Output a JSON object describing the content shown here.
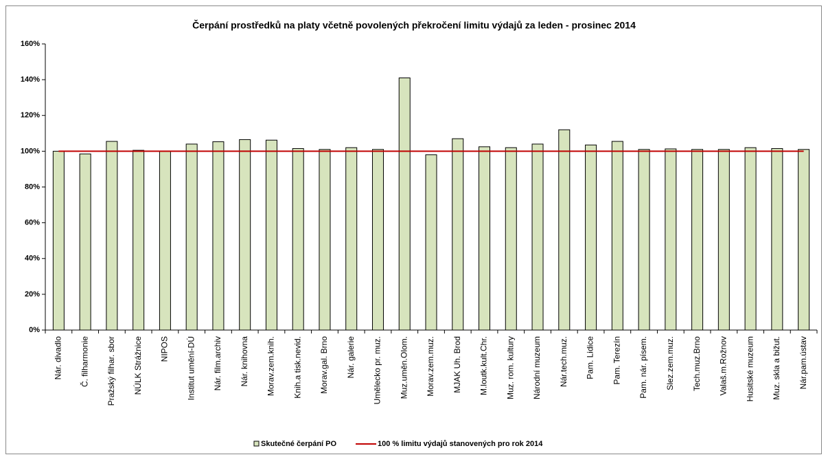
{
  "chart_data": {
    "type": "bar",
    "title": "Čerpání prostředků na platy včetně povolených překročení limitu výdajů za leden - prosinec 2014",
    "categories": [
      "Nár. divadlo",
      "Č. filharmonie",
      "Pražský filhar. sbor",
      "NÚLK Strážnice",
      "NIPOS",
      "Institut umění-DÚ",
      "Nár. film.archiv",
      "Nár. knihovna",
      "Morav.zem.knih.",
      "Knih.a tisk.nevid.",
      "Morav.gal. Brno",
      "Nár. galerie",
      "Umělecko pr. muz.",
      "Muz.uměn.Olom.",
      "Morav.zem.muz.",
      "MJAK Uh. Brod",
      "M.loutk.kult.Chr.",
      "Muz. rom. kultury",
      "Národní muzeum",
      "Nár.tech.muz.",
      "Pam. Lidice",
      "Pam. Terezín",
      "Pam. nár. písem.",
      "Slez.zem.muz.",
      "Tech.muz.Brno",
      "Valaš.m.Rožnov",
      "Husitské muzeum",
      "Muz. skla a bižut.",
      "Nár.pam.ústav"
    ],
    "series": [
      {
        "name": "Skutečné čerpání PO",
        "type": "bar",
        "color": "#d7e4bd",
        "values": [
          100,
          98.5,
          105.5,
          100.5,
          100,
          104,
          105.3,
          106.5,
          106.2,
          101.5,
          101,
          102,
          101,
          141,
          98,
          107,
          102.5,
          102,
          104,
          112,
          103.5,
          105.5,
          101,
          101.3,
          101,
          101,
          102,
          101.5,
          101
        ]
      },
      {
        "name": "100 % limitu výdajů stanovených pro rok 2014",
        "type": "line",
        "color": "#c00000",
        "values": [
          100,
          100,
          100,
          100,
          100,
          100,
          100,
          100,
          100,
          100,
          100,
          100,
          100,
          100,
          100,
          100,
          100,
          100,
          100,
          100,
          100,
          100,
          100,
          100,
          100,
          100,
          100,
          100,
          100
        ]
      }
    ],
    "ylim": [
      0,
      160
    ],
    "yticks": [
      {
        "value": 0,
        "label": "0%"
      },
      {
        "value": 20,
        "label": "20%"
      },
      {
        "value": 40,
        "label": "40%"
      },
      {
        "value": 60,
        "label": "60%"
      },
      {
        "value": 80,
        "label": "80%"
      },
      {
        "value": 100,
        "label": "100%"
      },
      {
        "value": 120,
        "label": "120%"
      },
      {
        "value": 140,
        "label": "140%"
      },
      {
        "value": 160,
        "label": "160%"
      }
    ],
    "legend": "bottom"
  }
}
